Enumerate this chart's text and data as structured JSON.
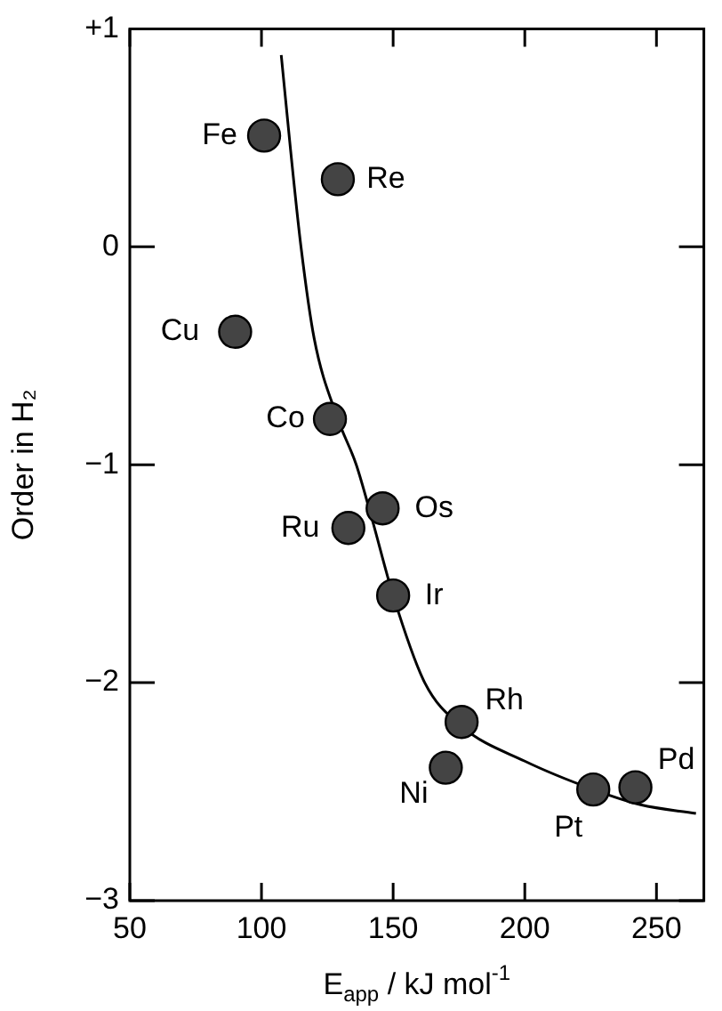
{
  "chart_data": {
    "type": "scatter",
    "xlabel": "E$_{app}$ / kJ mol$^{-1}$",
    "ylabel": "Order in H₂",
    "xlim": [
      50,
      268
    ],
    "xticks": [
      50,
      100,
      150,
      200,
      250
    ],
    "ylim": [
      -3,
      1
    ],
    "yticks": [
      {
        "value": -3,
        "label": "−3"
      },
      {
        "value": -2,
        "label": "−2"
      },
      {
        "value": -1,
        "label": "−1"
      },
      0,
      {
        "value": 1,
        "label": "+1"
      }
    ],
    "grid": false,
    "legend": false,
    "marker": "circle",
    "series": [
      {
        "color": "#444444",
        "x": [
          101,
          129,
          90,
          126,
          146,
          133,
          150,
          176,
          170,
          226,
          242
        ],
        "values": [
          0.51,
          0.31,
          -0.39,
          -0.79,
          -1.2,
          -1.29,
          -1.6,
          -2.18,
          -2.39,
          -2.49,
          -2.48
        ]
      },
      {
        "type": "line",
        "color": "#000000",
        "marker": "none",
        "x": [
          107.5,
          111,
          115,
          120,
          129,
          136,
          142,
          150,
          162,
          176,
          200,
          226,
          244,
          265
        ],
        "values": [
          0.88,
          0.45,
          0,
          -0.42,
          -0.79,
          -1.0,
          -1.25,
          -1.6,
          -2.0,
          -2.2,
          -2.36,
          -2.49,
          -2.56,
          -2.6
        ]
      }
    ],
    "annotations": [
      {
        "text": "Fe",
        "x": 101,
        "y": 0.51
      },
      {
        "text": "Re",
        "x": 129,
        "y": 0.31
      },
      {
        "text": "Cu",
        "x": 90,
        "y": -0.39
      },
      {
        "text": "Co",
        "x": 126,
        "y": -0.79
      },
      {
        "text": "Os",
        "x": 146,
        "y": -1.2
      },
      {
        "text": "Ru",
        "x": 133,
        "y": -1.29
      },
      {
        "text": "Ir",
        "x": 150,
        "y": -1.6
      },
      {
        "text": "Rh",
        "x": 176,
        "y": -2.18
      },
      {
        "text": "Ni",
        "x": 170,
        "y": -2.39
      },
      {
        "text": "Pt",
        "x": 226,
        "y": -2.49
      },
      {
        "text": "Pd",
        "x": 242,
        "y": -2.48
      }
    ]
  }
}
